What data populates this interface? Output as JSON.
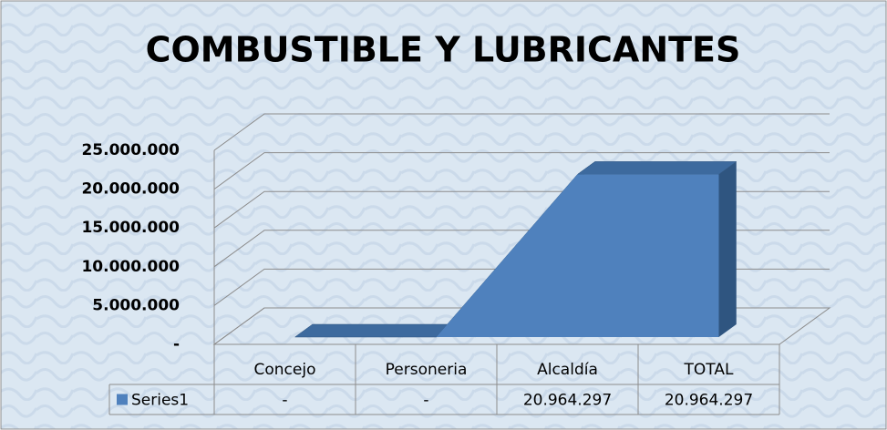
{
  "chart_data": {
    "type": "area3d",
    "title": "COMBUSTIBLE Y LUBRICANTES",
    "categories": [
      "Concejo",
      "Personeria",
      "Alcaldía",
      "TOTAL"
    ],
    "series": [
      {
        "name": "Series1",
        "color": "#4f81bd",
        "values": [
          0,
          0,
          20964297,
          20964297
        ],
        "value_labels": [
          "-",
          "-",
          "20.964.297",
          "20.964.297"
        ]
      }
    ],
    "ylim": [
      0,
      25000000
    ],
    "yticks": [
      {
        "value": 0,
        "label": "-"
      },
      {
        "value": 5000000,
        "label": "5.000.000"
      },
      {
        "value": 10000000,
        "label": "10.000.000"
      },
      {
        "value": 15000000,
        "label": "15.000.000"
      },
      {
        "value": 20000000,
        "label": "20.000.000"
      },
      {
        "value": 25000000,
        "label": "25.000.000"
      }
    ],
    "grid": true
  }
}
